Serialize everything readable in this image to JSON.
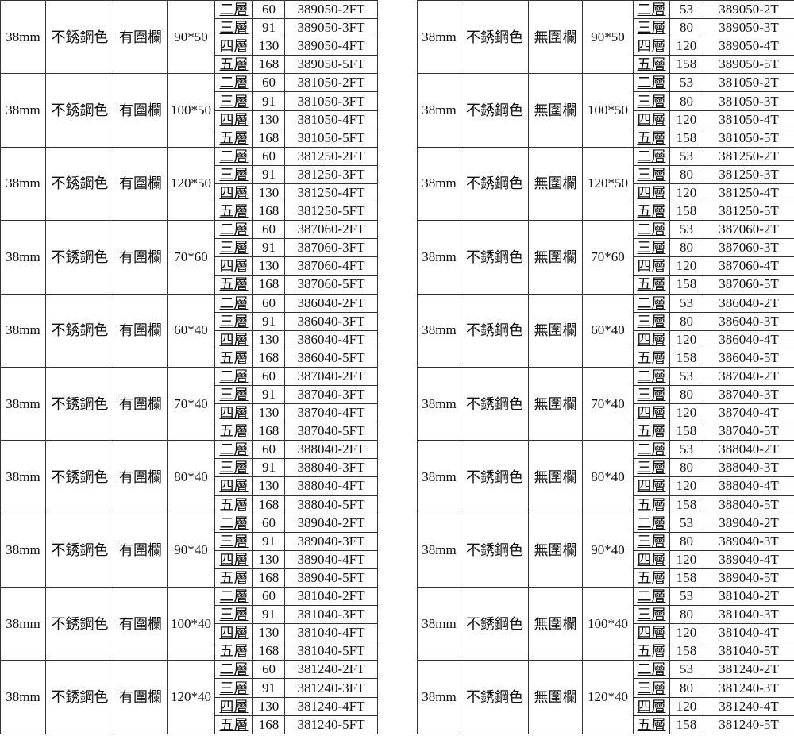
{
  "tables": [
    {
      "diameter": "38mm",
      "color": "不銹鋼色",
      "rail": "有圍欄",
      "groups": [
        {
          "size": "90*50",
          "rows": [
            [
              "二層",
              "60",
              "389050-2FT"
            ],
            [
              "三層",
              "91",
              "389050-3FT"
            ],
            [
              "四層",
              "130",
              "389050-4FT"
            ],
            [
              "五層",
              "168",
              "389050-5FT"
            ]
          ]
        },
        {
          "size": "100*50",
          "rows": [
            [
              "二層",
              "60",
              "381050-2FT"
            ],
            [
              "三層",
              "91",
              "381050-3FT"
            ],
            [
              "四層",
              "130",
              "381050-4FT"
            ],
            [
              "五層",
              "168",
              "381050-5FT"
            ]
          ]
        },
        {
          "size": "120*50",
          "rows": [
            [
              "二層",
              "60",
              "381250-2FT"
            ],
            [
              "三層",
              "91",
              "381250-3FT"
            ],
            [
              "四層",
              "130",
              "381250-4FT"
            ],
            [
              "五層",
              "168",
              "381250-5FT"
            ]
          ]
        },
        {
          "size": "70*60",
          "rows": [
            [
              "二層",
              "60",
              "387060-2FT"
            ],
            [
              "三層",
              "91",
              "387060-3FT"
            ],
            [
              "四層",
              "130",
              "387060-4FT"
            ],
            [
              "五層",
              "168",
              "387060-5FT"
            ]
          ]
        },
        {
          "size": "60*40",
          "rows": [
            [
              "二層",
              "60",
              "386040-2FT"
            ],
            [
              "三層",
              "91",
              "386040-3FT"
            ],
            [
              "四層",
              "130",
              "386040-4FT"
            ],
            [
              "五層",
              "168",
              "386040-5FT"
            ]
          ]
        },
        {
          "size": "70*40",
          "rows": [
            [
              "二層",
              "60",
              "387040-2FT"
            ],
            [
              "三層",
              "91",
              "387040-3FT"
            ],
            [
              "四層",
              "130",
              "387040-4FT"
            ],
            [
              "五層",
              "168",
              "387040-5FT"
            ]
          ]
        },
        {
          "size": "80*40",
          "rows": [
            [
              "二層",
              "60",
              "388040-2FT"
            ],
            [
              "三層",
              "91",
              "388040-3FT"
            ],
            [
              "四層",
              "130",
              "388040-4FT"
            ],
            [
              "五層",
              "168",
              "388040-5FT"
            ]
          ]
        },
        {
          "size": "90*40",
          "rows": [
            [
              "二層",
              "60",
              "389040-2FT"
            ],
            [
              "三層",
              "91",
              "389040-3FT"
            ],
            [
              "四層",
              "130",
              "389040-4FT"
            ],
            [
              "五層",
              "168",
              "389040-5FT"
            ]
          ]
        },
        {
          "size": "100*40",
          "rows": [
            [
              "二層",
              "60",
              "381040-2FT"
            ],
            [
              "三層",
              "91",
              "381040-3FT"
            ],
            [
              "四層",
              "130",
              "381040-4FT"
            ],
            [
              "五層",
              "168",
              "381040-5FT"
            ]
          ]
        },
        {
          "size": "120*40",
          "rows": [
            [
              "二層",
              "60",
              "381240-2FT"
            ],
            [
              "三層",
              "91",
              "381240-3FT"
            ],
            [
              "四層",
              "130",
              "381240-4FT"
            ],
            [
              "五層",
              "168",
              "381240-5FT"
            ]
          ]
        }
      ]
    },
    {
      "diameter": "38mm",
      "color": "不銹鋼色",
      "rail": "無圍欄",
      "groups": [
        {
          "size": "90*50",
          "rows": [
            [
              "二層",
              "53",
              "389050-2T"
            ],
            [
              "三層",
              "80",
              "389050-3T"
            ],
            [
              "四層",
              "120",
              "389050-4T"
            ],
            [
              "五層",
              "158",
              "389050-5T"
            ]
          ]
        },
        {
          "size": "100*50",
          "rows": [
            [
              "二層",
              "53",
              "381050-2T"
            ],
            [
              "三層",
              "80",
              "381050-3T"
            ],
            [
              "四層",
              "120",
              "381050-4T"
            ],
            [
              "五層",
              "158",
              "381050-5T"
            ]
          ]
        },
        {
          "size": "120*50",
          "rows": [
            [
              "二層",
              "53",
              "381250-2T"
            ],
            [
              "三層",
              "80",
              "381250-3T"
            ],
            [
              "四層",
              "120",
              "381250-4T"
            ],
            [
              "五層",
              "158",
              "381250-5T"
            ]
          ]
        },
        {
          "size": "70*60",
          "rows": [
            [
              "二層",
              "53",
              "387060-2T"
            ],
            [
              "三層",
              "80",
              "387060-3T"
            ],
            [
              "四層",
              "120",
              "387060-4T"
            ],
            [
              "五層",
              "158",
              "387060-5T"
            ]
          ]
        },
        {
          "size": "60*40",
          "rows": [
            [
              "二層",
              "53",
              "386040-2T"
            ],
            [
              "三層",
              "80",
              "386040-3T"
            ],
            [
              "四層",
              "120",
              "386040-4T"
            ],
            [
              "五層",
              "158",
              "386040-5T"
            ]
          ]
        },
        {
          "size": "70*40",
          "rows": [
            [
              "二層",
              "53",
              "387040-2T"
            ],
            [
              "三層",
              "80",
              "387040-3T"
            ],
            [
              "四層",
              "120",
              "387040-4T"
            ],
            [
              "五層",
              "158",
              "387040-5T"
            ]
          ]
        },
        {
          "size": "80*40",
          "rows": [
            [
              "二層",
              "53",
              "388040-2T"
            ],
            [
              "三層",
              "80",
              "388040-3T"
            ],
            [
              "四層",
              "120",
              "388040-4T"
            ],
            [
              "五層",
              "158",
              "388040-5T"
            ]
          ]
        },
        {
          "size": "90*40",
          "rows": [
            [
              "二層",
              "53",
              "389040-2T"
            ],
            [
              "三層",
              "80",
              "389040-3T"
            ],
            [
              "四層",
              "120",
              "389040-4T"
            ],
            [
              "五層",
              "158",
              "389040-5T"
            ]
          ]
        },
        {
          "size": "100*40",
          "rows": [
            [
              "二層",
              "53",
              "381040-2T"
            ],
            [
              "三層",
              "80",
              "381040-3T"
            ],
            [
              "四層",
              "120",
              "381040-4T"
            ],
            [
              "五層",
              "158",
              "381040-5T"
            ]
          ]
        },
        {
          "size": "120*40",
          "rows": [
            [
              "二層",
              "53",
              "381240-2T"
            ],
            [
              "三層",
              "80",
              "381240-3T"
            ],
            [
              "四層",
              "120",
              "381240-4T"
            ],
            [
              "五層",
              "158",
              "381240-5T"
            ]
          ]
        }
      ]
    }
  ]
}
